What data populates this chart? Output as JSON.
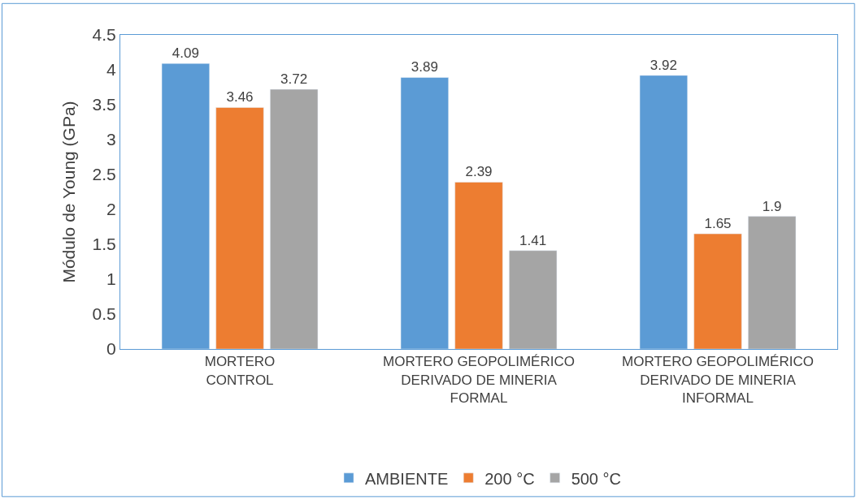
{
  "chart_data": {
    "type": "bar",
    "ylabel": "Módulo de Young (GPa)",
    "categories": [
      "MORTERO\nCONTROL",
      "MORTERO GEOPOLIMÉRICO\nDERIVADO DE MINERIA\nFORMAL",
      "MORTERO GEOPOLIMÉRICO\nDERIVADO DE MINERIA\nINFORMAL"
    ],
    "series": [
      {
        "name": "AMBIENTE",
        "color": "#5b9bd5",
        "values": [
          4.09,
          3.89,
          3.92
        ]
      },
      {
        "name": "200 °C",
        "color": "#ed7d31",
        "values": [
          3.46,
          2.39,
          1.65
        ]
      },
      {
        "name": "500 °C",
        "color": "#a5a5a5",
        "values": [
          3.72,
          1.41,
          1.9
        ]
      }
    ],
    "ylim": [
      0,
      4.5
    ],
    "yticks": [
      0,
      0.5,
      1,
      1.5,
      2,
      2.5,
      3,
      3.5,
      4,
      4.5
    ],
    "data_labels": true,
    "legend": "bottom"
  }
}
